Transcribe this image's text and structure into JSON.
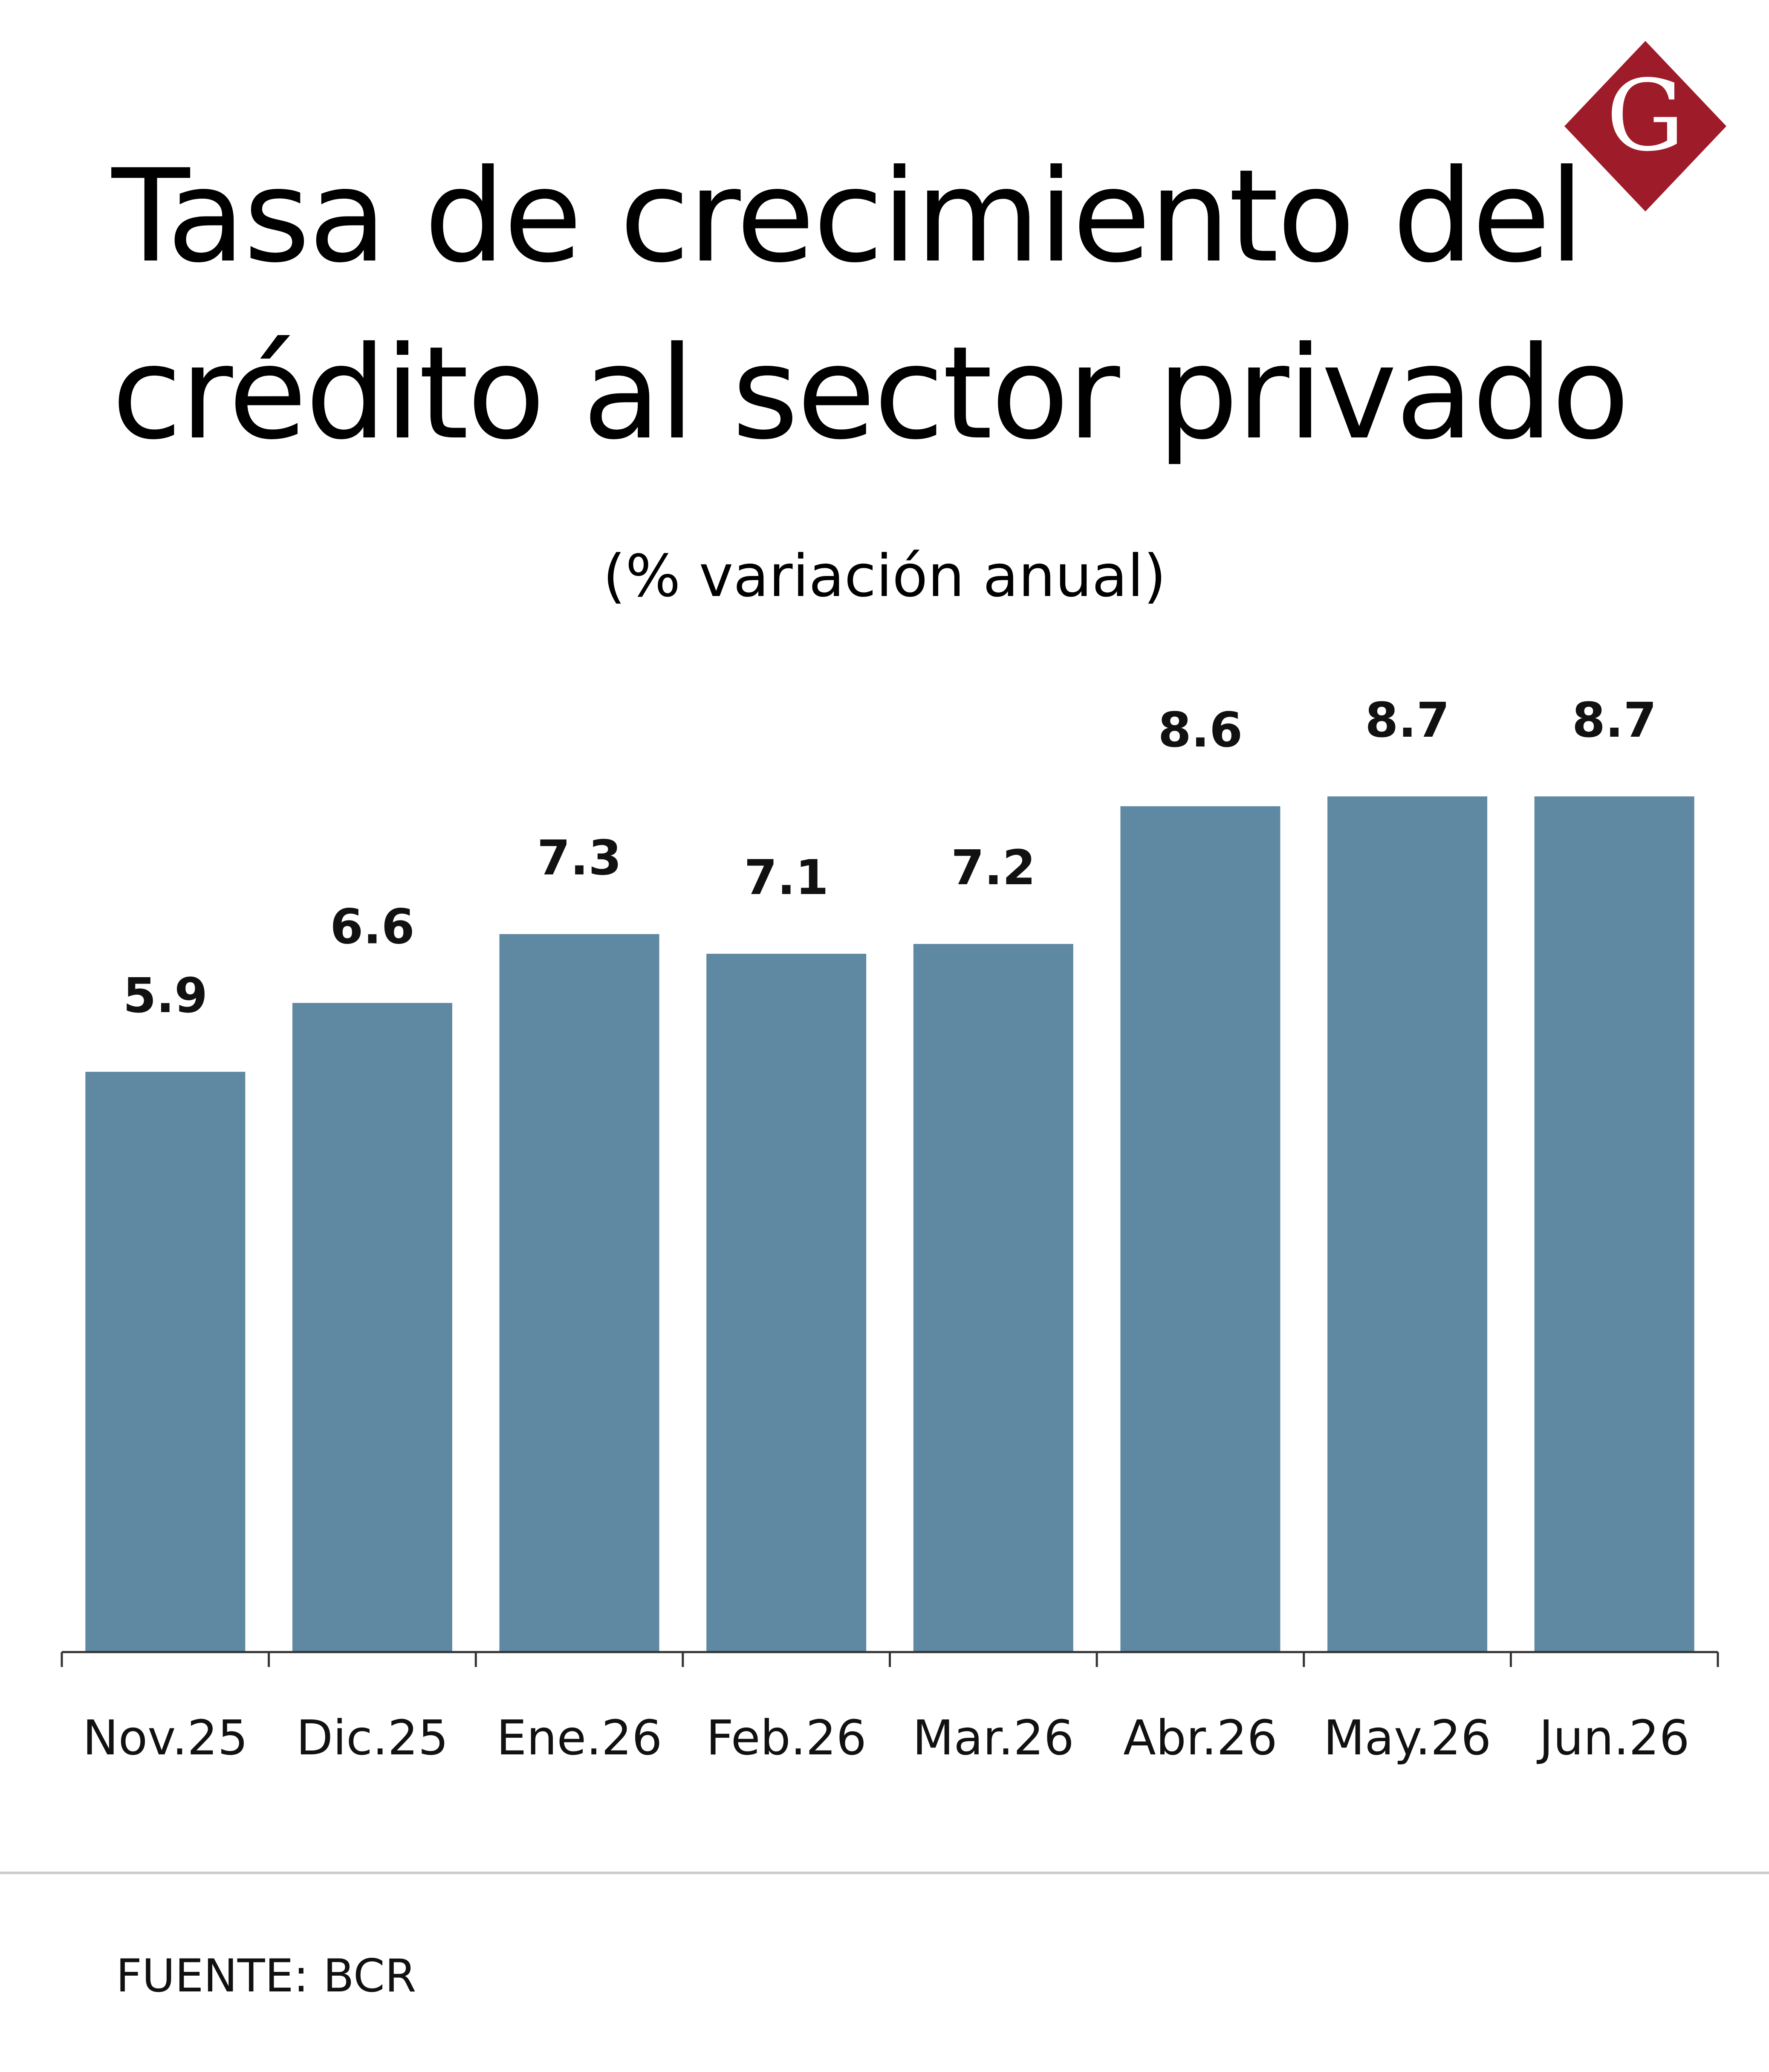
{
  "chart_data": {
    "type": "bar",
    "title": "Tasa de crecimiento del crédito al sector privado",
    "title_lines": [
      "Tasa de crecimiento del",
      "crédito al sector privado"
    ],
    "subtitle": "(% variación anual)",
    "xlabel": "",
    "ylabel": "",
    "categories": [
      "Nov.25",
      "Dic.25",
      "Ene.26",
      "Feb.26",
      "Mar.26",
      "Abr.26",
      "May.26",
      "Jun.26"
    ],
    "values": [
      5.9,
      6.6,
      7.3,
      7.1,
      7.2,
      8.6,
      8.7,
      8.7
    ],
    "value_labels": [
      "5.9",
      "6.6",
      "7.3",
      "7.1",
      "7.2",
      "8.6",
      "8.7",
      "8.7"
    ],
    "ylim": [
      0,
      8.7
    ],
    "grid": false,
    "legend": "none",
    "bar_color": "#5f88a2"
  },
  "logo": {
    "letter": "G",
    "color": "#9e1b2a"
  },
  "source": "FUENTE: BCR"
}
